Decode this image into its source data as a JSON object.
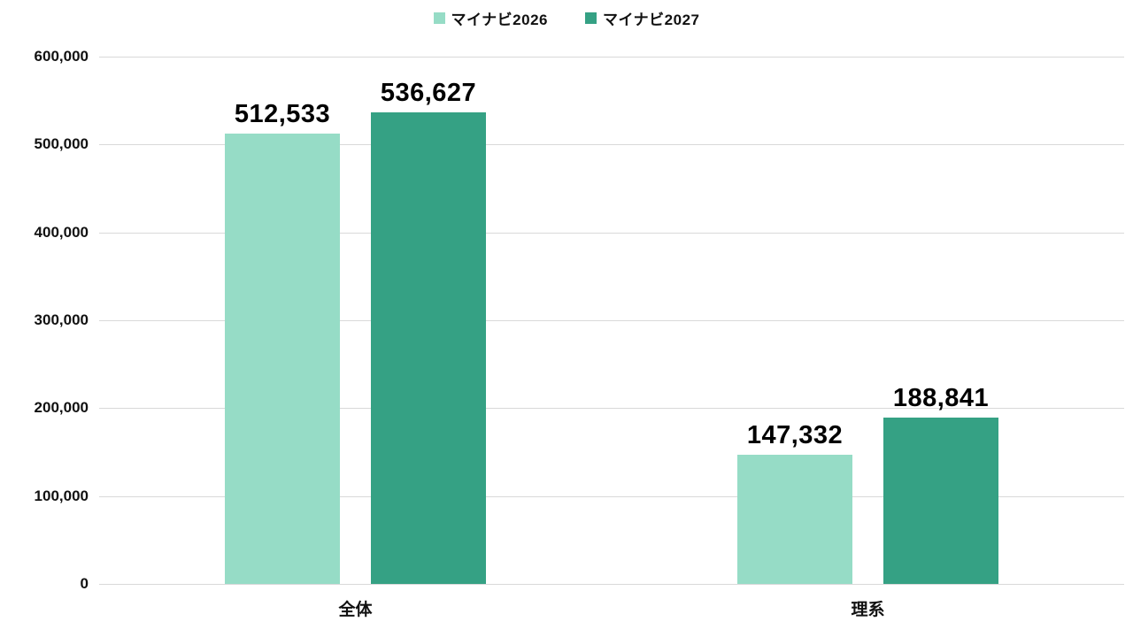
{
  "chart_data": {
    "type": "bar",
    "categories": [
      "全体",
      "理系"
    ],
    "series": [
      {
        "name": "マイナビ2026",
        "color": "#96DCC6",
        "values": [
          512533,
          147332
        ],
        "value_labels": [
          "512,533",
          "147,332"
        ]
      },
      {
        "name": "マイナビ2027",
        "color": "#35A184",
        "values": [
          536627,
          188841
        ],
        "value_labels": [
          "536,627",
          "188,841"
        ]
      }
    ],
    "title": "",
    "xlabel": "",
    "ylabel": "",
    "y_axis": {
      "min": 0,
      "max": 600000,
      "tick_interval": 100000,
      "tick_labels": [
        "0",
        "100,000",
        "200,000",
        "300,000",
        "400,000",
        "500,000",
        "600,000"
      ]
    },
    "grid": true,
    "legend_position": "top-center",
    "data_labels": true
  },
  "colors": {
    "gridline": "#d9d9d9",
    "text": "#111111",
    "background": "#ffffff"
  }
}
